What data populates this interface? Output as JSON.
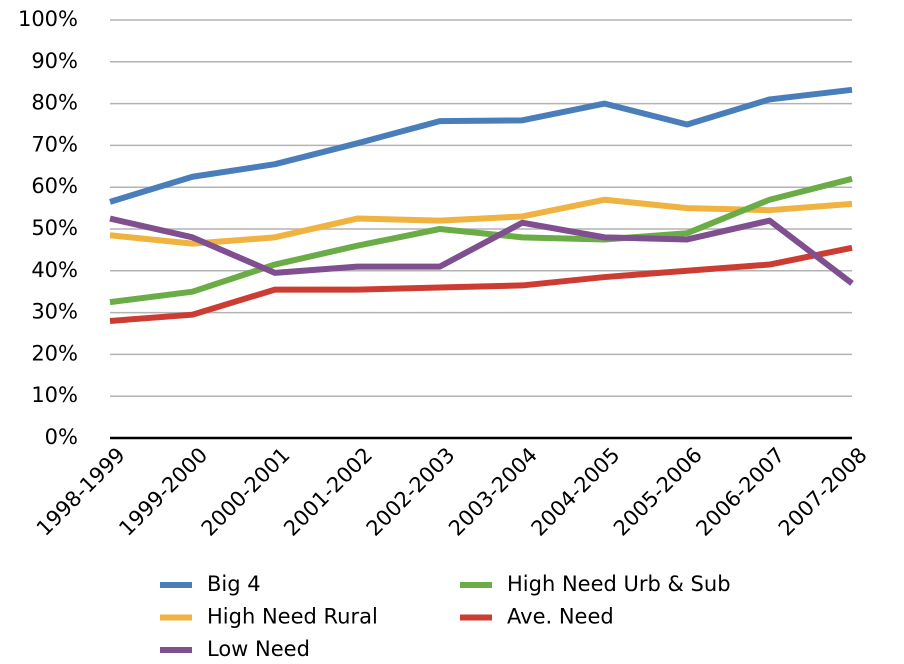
{
  "chart_data": {
    "type": "line",
    "categories": [
      "1998-1999",
      "1999-2000",
      "2000-2001",
      "2001-2002",
      "2002-2003",
      "2003-2004",
      "2004-2005",
      "2005-2006",
      "2006-2007",
      "2007-2008"
    ],
    "series": [
      {
        "name": "Big 4",
        "color": "#4a7ebb",
        "values": [
          56.5,
          62.5,
          65.5,
          70.5,
          75.8,
          76,
          80,
          75,
          81,
          83.3
        ]
      },
      {
        "name": "High Need Urb & Sub",
        "color": "#6aac46",
        "values": [
          32.5,
          35,
          41.5,
          46,
          50,
          48,
          47.5,
          49,
          57,
          62
        ]
      },
      {
        "name": "High Need Rural",
        "color": "#f0b240",
        "values": [
          48.5,
          46.5,
          48,
          52.5,
          52,
          53,
          57,
          55,
          54.5,
          56
        ]
      },
      {
        "name": "Ave. Need",
        "color": "#cc3c33",
        "values": [
          28,
          29.5,
          35.5,
          35.5,
          36,
          36.5,
          38.5,
          40,
          41.5,
          45.5
        ]
      },
      {
        "name": "Low Need",
        "color": "#7f4f8f",
        "values": [
          52.5,
          48,
          39.5,
          41,
          41,
          51.5,
          48,
          47.5,
          52,
          37
        ]
      }
    ],
    "ylim": [
      0,
      100
    ],
    "yticks": [
      {
        "value": 0,
        "label": "0%"
      },
      {
        "value": 10,
        "label": "10%"
      },
      {
        "value": 20,
        "label": "20%"
      },
      {
        "value": 30,
        "label": "30%"
      },
      {
        "value": 40,
        "label": "40%"
      },
      {
        "value": 50,
        "label": "50%"
      },
      {
        "value": 60,
        "label": "60%"
      },
      {
        "value": 70,
        "label": "70%"
      },
      {
        "value": 80,
        "label": "80%"
      },
      {
        "value": 90,
        "label": "90%"
      },
      {
        "value": 100,
        "label": "100%"
      }
    ],
    "grid": true
  }
}
